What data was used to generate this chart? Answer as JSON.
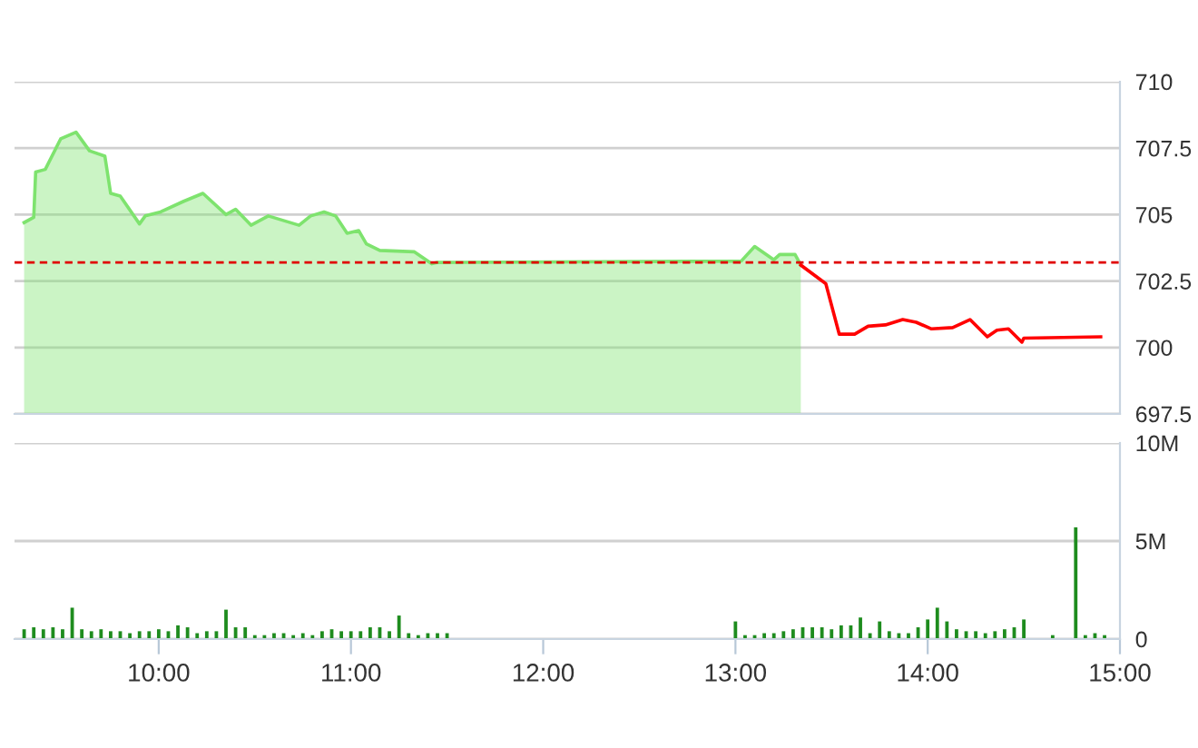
{
  "chart_data": [
    {
      "type": "area",
      "xlim": [
        9.25,
        15.0
      ],
      "ylim": [
        697.5,
        710
      ],
      "yticks": [
        697.5,
        700,
        702.5,
        705,
        707.5,
        710
      ],
      "tick_labels": "y",
      "grid": "y",
      "legend": false,
      "ref_lines": [
        {
          "axis": "y",
          "value": 703.2,
          "label": null,
          "color": "#e00000",
          "line_style": "dashed"
        }
      ],
      "series": [
        {
          "color": "#7ee36e",
          "x": [
            9.3,
            9.35,
            9.36,
            9.41,
            9.49,
            9.57,
            9.64,
            9.72,
            9.75,
            9.8,
            9.9,
            9.93,
            10.01,
            10.13,
            10.23,
            10.35,
            10.4,
            10.48,
            10.57,
            10.73,
            10.79,
            10.86,
            10.92,
            10.98,
            11.04,
            11.08,
            11.15,
            11.33,
            11.42,
            11.45,
            13.03,
            13.1,
            13.2,
            13.23,
            13.31,
            13.34
          ],
          "values": [
            704.7,
            704.9,
            706.6,
            706.7,
            707.85,
            708.1,
            707.4,
            707.2,
            705.8,
            705.7,
            704.65,
            704.95,
            705.1,
            705.5,
            705.8,
            705.0,
            705.2,
            704.6,
            704.95,
            704.6,
            704.95,
            705.1,
            704.95,
            704.3,
            704.4,
            703.9,
            703.65,
            703.6,
            703.15,
            703.2,
            703.25,
            703.8,
            703.3,
            703.5,
            703.5,
            703.1
          ]
        },
        {
          "type": "line",
          "color": "#ff0000",
          "x": [
            13.34,
            13.47,
            13.54,
            13.62,
            13.69,
            13.78,
            13.87,
            13.94,
            14.02,
            14.13,
            14.22,
            14.31,
            14.36,
            14.42,
            14.49,
            14.5,
            14.9
          ],
          "values": [
            703.1,
            702.4,
            700.5,
            700.5,
            700.8,
            700.85,
            701.05,
            700.95,
            700.7,
            700.75,
            701.05,
            700.4,
            700.65,
            700.7,
            700.2,
            700.35,
            700.4
          ]
        }
      ]
    },
    {
      "type": "bar",
      "xlim": [
        9.25,
        15.0
      ],
      "ylim": [
        0,
        10
      ],
      "yticks": [
        0,
        {
          "value": 5,
          "label": "5M"
        },
        {
          "value": 10,
          "label": "10M"
        }
      ],
      "xticks": [
        {
          "value": 10,
          "label": "10:00"
        },
        {
          "value": 11,
          "label": "11:00"
        },
        {
          "value": 12,
          "label": "12:00"
        },
        {
          "value": 13,
          "label": "13:00"
        },
        {
          "value": 14,
          "label": "14:00"
        },
        {
          "value": 15,
          "label": "15:00"
        }
      ],
      "grid": "y",
      "legend": false,
      "series": [
        {
          "color": "#1e8c1e",
          "x": [
            9.3,
            9.35,
            9.4,
            9.45,
            9.5,
            9.55,
            9.6,
            9.65,
            9.7,
            9.75,
            9.8,
            9.85,
            9.9,
            9.95,
            10.0,
            10.05,
            10.1,
            10.15,
            10.2,
            10.25,
            10.3,
            10.35,
            10.4,
            10.45,
            10.5,
            10.55,
            10.6,
            10.65,
            10.7,
            10.75,
            10.8,
            10.85,
            10.9,
            10.95,
            11.0,
            11.05,
            11.1,
            11.15,
            11.2,
            11.25,
            11.3,
            11.35,
            11.4,
            11.45,
            11.5,
            13.0,
            13.05,
            13.1,
            13.15,
            13.2,
            13.25,
            13.3,
            13.35,
            13.4,
            13.45,
            13.5,
            13.55,
            13.6,
            13.65,
            13.7,
            13.75,
            13.8,
            13.85,
            13.9,
            13.95,
            14.0,
            14.05,
            14.1,
            14.15,
            14.2,
            14.25,
            14.3,
            14.35,
            14.4,
            14.45,
            14.5,
            14.65,
            14.77,
            14.82,
            14.87,
            14.92
          ],
          "values": [
            0.5,
            0.6,
            0.5,
            0.6,
            0.5,
            1.6,
            0.5,
            0.4,
            0.5,
            0.4,
            0.4,
            0.3,
            0.4,
            0.4,
            0.5,
            0.4,
            0.7,
            0.6,
            0.3,
            0.4,
            0.4,
            1.5,
            0.6,
            0.6,
            0.2,
            0.2,
            0.3,
            0.3,
            0.2,
            0.3,
            0.2,
            0.4,
            0.5,
            0.4,
            0.4,
            0.4,
            0.6,
            0.6,
            0.4,
            1.2,
            0.3,
            0.2,
            0.3,
            0.3,
            0.3,
            0.9,
            0.2,
            0.2,
            0.3,
            0.3,
            0.4,
            0.5,
            0.6,
            0.6,
            0.6,
            0.5,
            0.7,
            0.7,
            1.1,
            0.3,
            0.9,
            0.4,
            0.3,
            0.3,
            0.6,
            1.0,
            1.6,
            0.9,
            0.5,
            0.4,
            0.4,
            0.3,
            0.4,
            0.5,
            0.6,
            1.0,
            0.2,
            5.7,
            0.2,
            0.3,
            0.2
          ]
        }
      ]
    }
  ]
}
